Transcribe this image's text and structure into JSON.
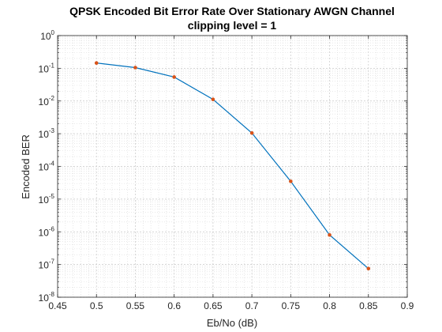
{
  "chart_data": {
    "type": "line",
    "title": "QPSK Encoded Bit Error Rate Over Stationary AWGN Channel",
    "subtitle": "clipping level = 1",
    "xlabel": "Eb/No (dB)",
    "ylabel": "Encoded BER",
    "yscale": "log",
    "xlim": [
      0.45,
      0.9
    ],
    "ylim_exponent": [
      -8,
      0
    ],
    "x_ticks": [
      "0.45",
      "0.5",
      "0.55",
      "0.6",
      "0.65",
      "0.7",
      "0.75",
      "0.8",
      "0.85",
      "0.9"
    ],
    "y_ticks": [
      {
        "base": "10",
        "exp": "0"
      },
      {
        "base": "10",
        "exp": "-1"
      },
      {
        "base": "10",
        "exp": "-2"
      },
      {
        "base": "10",
        "exp": "-3"
      },
      {
        "base": "10",
        "exp": "-4"
      },
      {
        "base": "10",
        "exp": "-5"
      },
      {
        "base": "10",
        "exp": "-6"
      },
      {
        "base": "10",
        "exp": "-7"
      },
      {
        "base": "10",
        "exp": "-8"
      }
    ],
    "grid": true,
    "series": [
      {
        "name": "Encoded BER",
        "x": [
          0.5,
          0.55,
          0.6,
          0.65,
          0.7,
          0.75,
          0.8,
          0.85
        ],
        "y": [
          0.145,
          0.105,
          0.054,
          0.0112,
          0.00105,
          3.5e-05,
          8e-07,
          7.5e-08
        ],
        "line_color": "#0072BD",
        "marker_color": "#D95319"
      }
    ]
  }
}
